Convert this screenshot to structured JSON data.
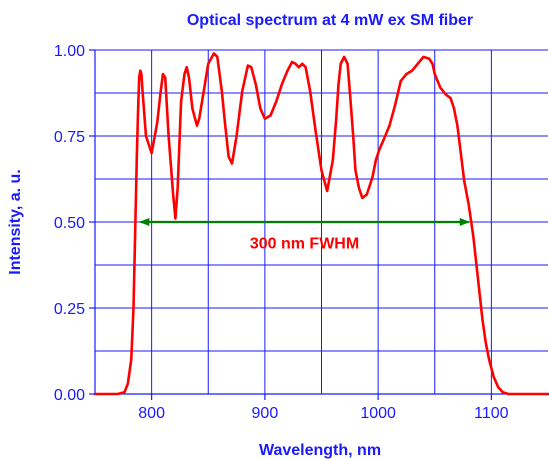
{
  "colors": {
    "axis": "#1a1aff",
    "grid": "#1a1aff",
    "series": "#ff0000",
    "fwhm_arrow": "#008000",
    "annotation_text": "#ff0000"
  },
  "chart_data": {
    "type": "line",
    "title": "Optical spectrum at 4 mW ex SM fiber",
    "xlabel": "Wavelength, nm",
    "ylabel": "Intensity, a. u.",
    "xlim": [
      750,
      1150
    ],
    "ylim": [
      0,
      1
    ],
    "grid": true,
    "x_grid": [
      800,
      850,
      900,
      950,
      1000,
      1050,
      1100
    ],
    "y_grid": [
      0.125,
      0.25,
      0.375,
      0.5,
      0.625,
      0.75,
      0.875,
      1.0
    ],
    "x_ticks": [
      {
        "value": 800,
        "label": "800"
      },
      {
        "value": 900,
        "label": "900"
      },
      {
        "value": 1000,
        "label": "1000"
      },
      {
        "value": 1100,
        "label": "1100"
      }
    ],
    "y_ticks": [
      {
        "value": 0.0,
        "label": "0.00"
      },
      {
        "value": 0.25,
        "label": "0.25"
      },
      {
        "value": 0.5,
        "label": "0.50"
      },
      {
        "value": 0.75,
        "label": "0.75"
      },
      {
        "value": 1.0,
        "label": "1.00"
      }
    ],
    "series": [
      {
        "x": [
          750,
          770,
          776,
          779,
          782,
          784,
          785,
          786,
          787,
          788,
          789,
          790,
          791,
          792,
          795,
          800,
          805,
          808,
          810,
          812,
          815,
          819,
          821,
          823,
          826,
          829,
          831,
          833,
          836,
          840,
          842,
          846,
          850,
          855,
          858,
          862,
          865,
          868,
          871,
          875,
          880,
          885,
          888,
          892,
          896,
          900,
          905,
          910,
          915,
          920,
          924,
          927,
          930,
          933,
          936,
          940,
          945,
          950,
          955,
          960,
          963,
          965,
          967,
          970,
          973,
          975,
          978,
          980,
          983,
          986,
          990,
          995,
          998,
          1001,
          1005,
          1010,
          1015,
          1020,
          1025,
          1030,
          1035,
          1040,
          1045,
          1048,
          1050,
          1055,
          1060,
          1064,
          1067,
          1070,
          1073,
          1076,
          1080,
          1084,
          1088,
          1092,
          1095,
          1098,
          1102,
          1106,
          1110,
          1115,
          1120,
          1130,
          1140,
          1150
        ],
        "y": [
          0.0,
          0.0,
          0.005,
          0.03,
          0.1,
          0.25,
          0.4,
          0.55,
          0.7,
          0.82,
          0.92,
          0.94,
          0.93,
          0.88,
          0.75,
          0.7,
          0.79,
          0.88,
          0.93,
          0.92,
          0.75,
          0.58,
          0.51,
          0.6,
          0.85,
          0.93,
          0.95,
          0.92,
          0.83,
          0.78,
          0.8,
          0.88,
          0.96,
          0.99,
          0.98,
          0.88,
          0.78,
          0.69,
          0.67,
          0.75,
          0.88,
          0.955,
          0.95,
          0.9,
          0.83,
          0.8,
          0.81,
          0.85,
          0.9,
          0.94,
          0.965,
          0.96,
          0.95,
          0.96,
          0.95,
          0.88,
          0.76,
          0.65,
          0.59,
          0.68,
          0.8,
          0.9,
          0.96,
          0.98,
          0.96,
          0.88,
          0.75,
          0.65,
          0.6,
          0.57,
          0.58,
          0.63,
          0.68,
          0.71,
          0.74,
          0.78,
          0.84,
          0.91,
          0.93,
          0.94,
          0.96,
          0.98,
          0.975,
          0.96,
          0.93,
          0.89,
          0.87,
          0.86,
          0.83,
          0.78,
          0.7,
          0.62,
          0.55,
          0.46,
          0.34,
          0.22,
          0.15,
          0.1,
          0.05,
          0.02,
          0.005,
          0.0,
          0.0,
          0.0,
          0.0,
          0.0
        ]
      }
    ],
    "annotations": [
      {
        "type": "double-arrow",
        "x1": 790,
        "x2": 1080,
        "y": 0.5,
        "text": "300 nm FWHM",
        "text_x": 935,
        "text_y": 0.44
      }
    ]
  }
}
